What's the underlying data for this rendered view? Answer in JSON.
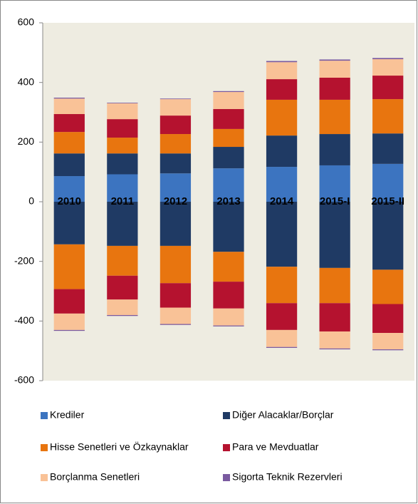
{
  "chart_data": {
    "type": "bar",
    "categories": [
      "2010",
      "2011",
      "2012",
      "2013",
      "2014",
      "2015-I",
      "2015-II"
    ],
    "series": [
      {
        "name": "Krediler",
        "color": "#3c74c0",
        "values": [
          86,
          92,
          95,
          112,
          117,
          122,
          127
        ],
        "negative_values": [
          0,
          0,
          0,
          0,
          0,
          0,
          0
        ]
      },
      {
        "name": "Diğer Alacaklar/Borçlar",
        "color": "#1f3a64",
        "values": [
          76,
          70,
          67,
          72,
          105,
          105,
          102
        ],
        "negative_values": [
          -143,
          -148,
          -148,
          -168,
          -218,
          -222,
          -228
        ]
      },
      {
        "name": "Hisse Senetleri ve Özkaynaklar",
        "color": "#e8750f",
        "values": [
          72,
          53,
          65,
          60,
          120,
          115,
          115
        ],
        "negative_values": [
          -150,
          -100,
          -125,
          -100,
          -122,
          -118,
          -115
        ]
      },
      {
        "name": "Para ve Mevduatlar",
        "color": "#b5122f",
        "values": [
          60,
          62,
          62,
          67,
          69,
          74,
          79
        ],
        "negative_values": [
          -82,
          -80,
          -82,
          -90,
          -90,
          -95,
          -97
        ]
      },
      {
        "name": "Borçlanma Senetleri",
        "color": "#f9c297",
        "values": [
          52,
          53,
          55,
          57,
          57,
          57,
          55
        ],
        "negative_values": [
          -55,
          -52,
          -55,
          -57,
          -57,
          -57,
          -55
        ]
      },
      {
        "name": "Sigorta Teknik Rezervleri",
        "color": "#7a5aa0",
        "values": [
          3,
          2,
          2,
          3,
          4,
          4,
          4
        ],
        "negative_values": [
          -3,
          -3,
          -3,
          -3,
          -3,
          -3,
          -3
        ]
      }
    ],
    "ylim": [
      -600,
      600
    ],
    "yticks": [
      -600,
      -400,
      -200,
      0,
      200,
      400,
      600
    ],
    "legend": "bottom"
  }
}
